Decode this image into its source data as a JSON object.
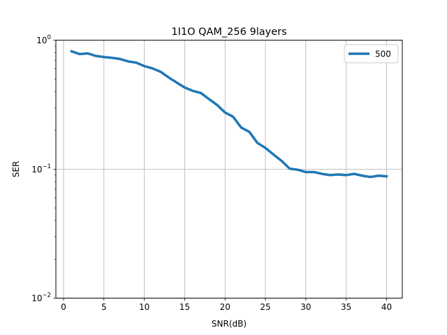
{
  "chart_data": {
    "type": "line",
    "title": "1I1O QAM_256 9layers",
    "xlabel": "SNR(dB)",
    "ylabel": "SER",
    "xlim": [
      -0.95,
      41.95
    ],
    "ylim": [
      0.01,
      1
    ],
    "yscale": "log",
    "x_ticks": [
      0,
      5,
      10,
      15,
      20,
      25,
      30,
      35,
      40
    ],
    "x_tick_labels": [
      "0",
      "5",
      "10",
      "15",
      "20",
      "25",
      "30",
      "35",
      "40"
    ],
    "y_ticks": [
      0.01,
      0.1,
      1
    ],
    "y_tick_labels": [
      {
        "base": "10",
        "exp": "−2"
      },
      {
        "base": "10",
        "exp": "−1"
      },
      {
        "base": "10",
        "exp": "0"
      }
    ],
    "grid": true,
    "legend_position": "top-right",
    "series": [
      {
        "name": "500",
        "color": "#1f77b4",
        "x": [
          1,
          2,
          3,
          4,
          5,
          6,
          7,
          8,
          9,
          10,
          11,
          12,
          13,
          14,
          15,
          16,
          17,
          18,
          19,
          20,
          21,
          22,
          23,
          24,
          25,
          26,
          27,
          28,
          29,
          30,
          31,
          32,
          33,
          34,
          35,
          36,
          37,
          38,
          39,
          40
        ],
        "y": [
          0.82,
          0.78,
          0.79,
          0.755,
          0.74,
          0.73,
          0.715,
          0.685,
          0.67,
          0.63,
          0.605,
          0.57,
          0.515,
          0.47,
          0.43,
          0.405,
          0.39,
          0.35,
          0.315,
          0.275,
          0.255,
          0.21,
          0.195,
          0.16,
          0.146,
          0.13,
          0.116,
          0.101,
          0.099,
          0.095,
          0.095,
          0.092,
          0.09,
          0.091,
          0.09,
          0.092,
          0.089,
          0.087,
          0.089,
          0.088
        ]
      }
    ]
  }
}
